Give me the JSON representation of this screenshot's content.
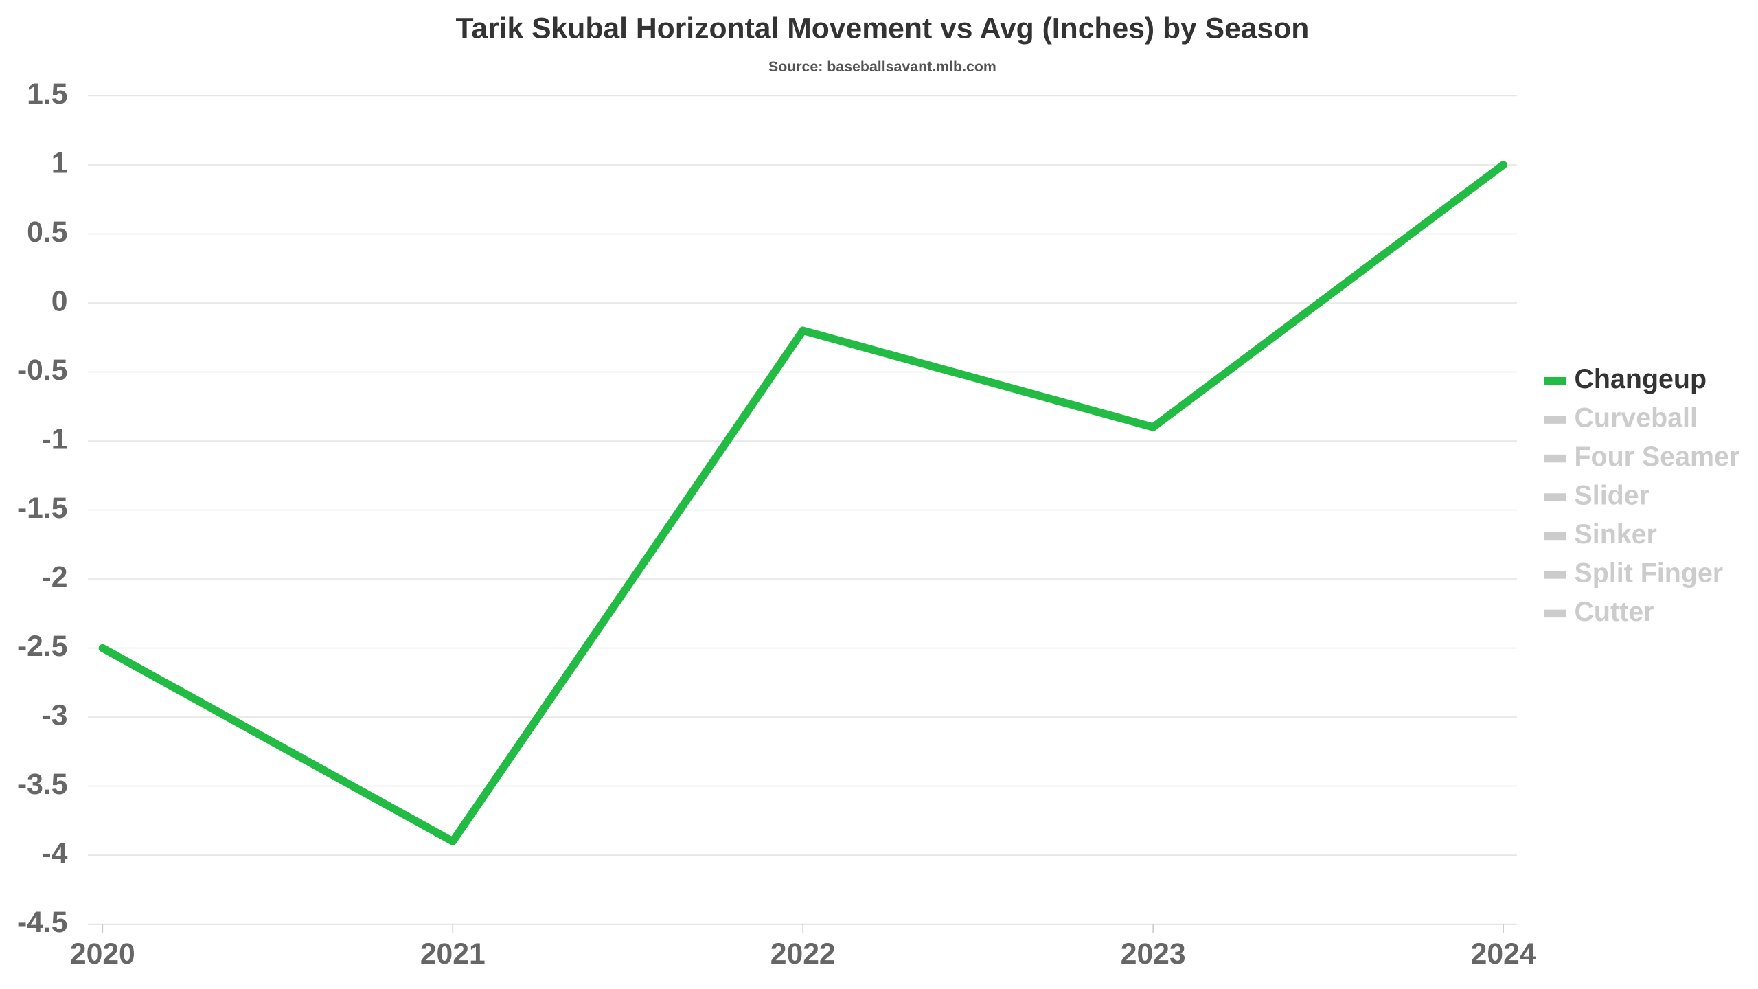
{
  "chart_data": {
    "type": "line",
    "title": "Tarik Skubal Horizontal Movement vs Avg (Inches) by Season",
    "subtitle": "Source: baseballsavant.mlb.com",
    "categories": [
      "2020",
      "2021",
      "2022",
      "2023",
      "2024"
    ],
    "series": [
      {
        "name": "Changeup",
        "color": "#22bb44",
        "visible": true,
        "values": [
          -2.5,
          -3.9,
          -0.2,
          -0.9,
          1.0
        ]
      },
      {
        "name": "Curveball",
        "color": "#cccccc",
        "visible": false
      },
      {
        "name": "Four Seamer",
        "color": "#cccccc",
        "visible": false
      },
      {
        "name": "Slider",
        "color": "#cccccc",
        "visible": false
      },
      {
        "name": "Sinker",
        "color": "#cccccc",
        "visible": false
      },
      {
        "name": "Split Finger",
        "color": "#cccccc",
        "visible": false
      },
      {
        "name": "Cutter",
        "color": "#cccccc",
        "visible": false
      }
    ],
    "ylim": [
      -4.5,
      1.5
    ],
    "yticks": [
      -4.5,
      -4,
      -3.5,
      -3,
      -2.5,
      -2,
      -1.5,
      -1,
      -0.5,
      0,
      0.5,
      1,
      1.5
    ],
    "grid": true,
    "legend": "right"
  }
}
